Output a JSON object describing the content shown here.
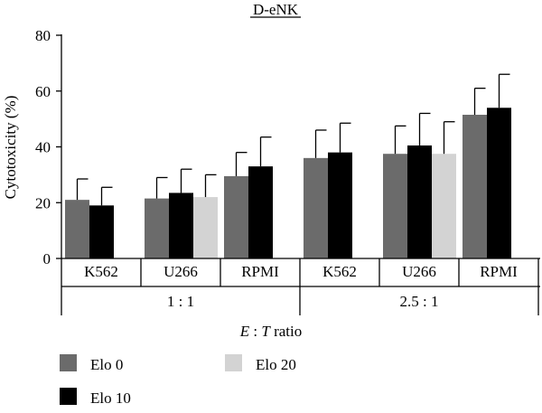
{
  "chart_data": {
    "type": "bar",
    "title": "D-eNK",
    "ylabel": "Cytotoxicity (%)",
    "xlabel": {
      "italic_e": "E",
      "colon": " : ",
      "italic_t": "T",
      "rest": " ratio"
    },
    "ylim": [
      0,
      80
    ],
    "yticks": [
      0,
      20,
      40,
      60,
      80
    ],
    "colors": {
      "Elo 0": "#6b6b6b",
      "Elo 10": "#000000",
      "Elo 20": "#d3d3d3"
    },
    "groups": [
      {
        "ratio": "1 : 1",
        "targets": [
          {
            "label": "K562",
            "bars": [
              {
                "series": "Elo 0",
                "value": 21,
                "error": 7.5
              },
              {
                "series": "Elo 10",
                "value": 19,
                "error": 6.5
              }
            ]
          },
          {
            "label": "U266",
            "bars": [
              {
                "series": "Elo 0",
                "value": 21.5,
                "error": 7.5
              },
              {
                "series": "Elo 10",
                "value": 23.5,
                "error": 8.5
              },
              {
                "series": "Elo 20",
                "value": 22,
                "error": 8
              }
            ]
          },
          {
            "label": "RPMI",
            "bars": [
              {
                "series": "Elo 0",
                "value": 29.5,
                "error": 8.5
              },
              {
                "series": "Elo 10",
                "value": 33,
                "error": 10.5
              }
            ]
          }
        ]
      },
      {
        "ratio": "2.5 : 1",
        "targets": [
          {
            "label": "K562",
            "bars": [
              {
                "series": "Elo 0",
                "value": 36,
                "error": 10
              },
              {
                "series": "Elo 10",
                "value": 38,
                "error": 10.5
              }
            ]
          },
          {
            "label": "U266",
            "bars": [
              {
                "series": "Elo 0",
                "value": 37.5,
                "error": 10
              },
              {
                "series": "Elo 10",
                "value": 40.5,
                "error": 11.5
              },
              {
                "series": "Elo 20",
                "value": 37.5,
                "error": 11.5
              }
            ]
          },
          {
            "label": "RPMI",
            "bars": [
              {
                "series": "Elo 0",
                "value": 51.5,
                "error": 9.5
              },
              {
                "series": "Elo 10",
                "value": 54,
                "error": 12
              }
            ]
          }
        ]
      }
    ],
    "legend": [
      {
        "name": "Elo 0"
      },
      {
        "name": "Elo 20"
      },
      {
        "name": "Elo 10"
      }
    ]
  }
}
